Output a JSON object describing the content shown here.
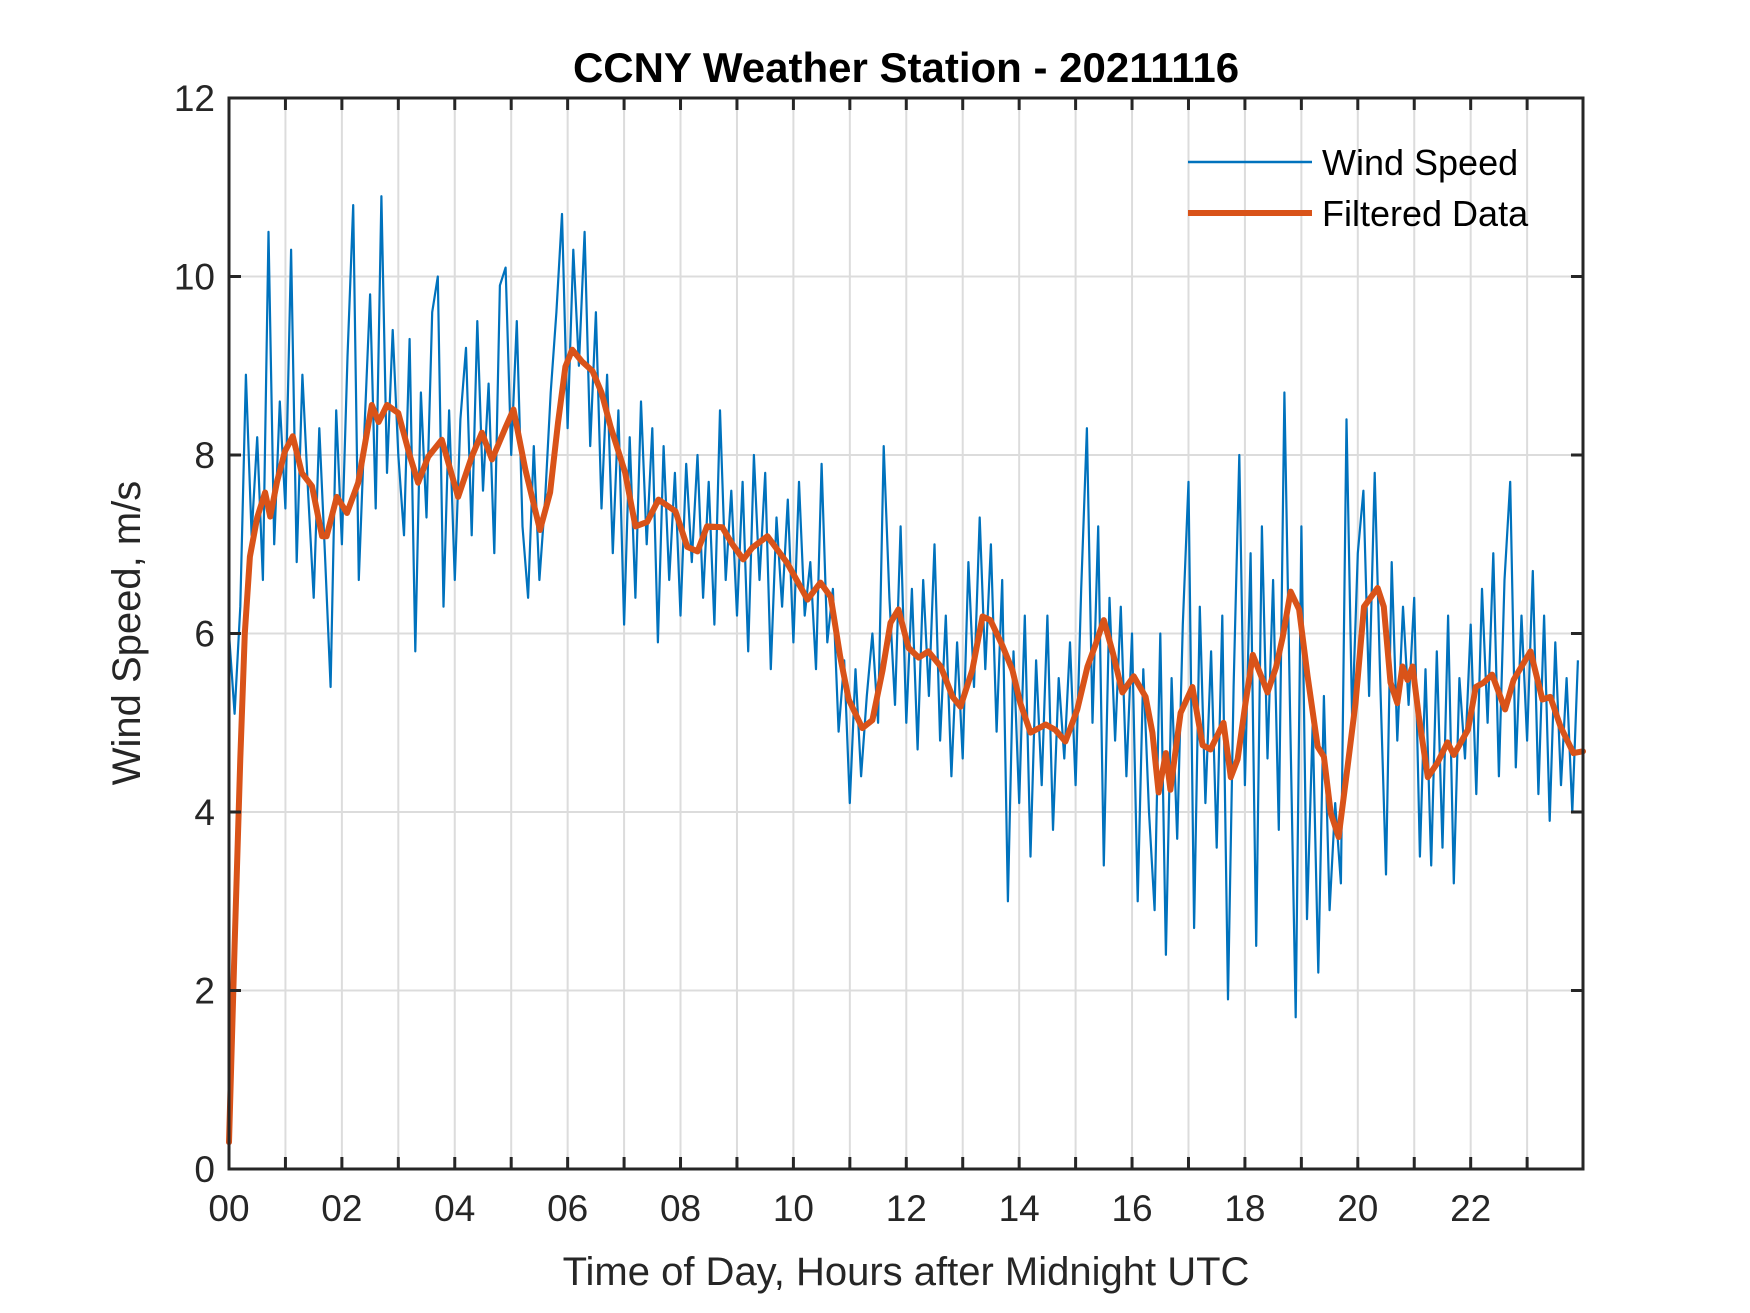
{
  "chart_data": {
    "type": "line",
    "title": "CCNY Weather Station - 20211116",
    "xlabel": "Time of Day, Hours after Midnight UTC",
    "ylabel": "Wind Speed, m/s",
    "xlim": [
      0,
      23.99
    ],
    "ylim": [
      0,
      12
    ],
    "grid": true,
    "legend_position": "top-right",
    "x_ticks": [
      0,
      1,
      2,
      3,
      4,
      5,
      6,
      7,
      8,
      9,
      10,
      11,
      12,
      13,
      14,
      15,
      16,
      17,
      18,
      19,
      20,
      21,
      22,
      23
    ],
    "x_tick_labels": [
      {
        "value": 0,
        "label": "00"
      },
      {
        "value": 2,
        "label": "02"
      },
      {
        "value": 4,
        "label": "04"
      },
      {
        "value": 6,
        "label": "06"
      },
      {
        "value": 8,
        "label": "08"
      },
      {
        "value": 10,
        "label": "10"
      },
      {
        "value": 12,
        "label": "12"
      },
      {
        "value": 14,
        "label": "14"
      },
      {
        "value": 16,
        "label": "16"
      },
      {
        "value": 18,
        "label": "18"
      },
      {
        "value": 20,
        "label": "20"
      },
      {
        "value": 22,
        "label": "22"
      }
    ],
    "y_ticks": [
      {
        "value": 0,
        "label": "0"
      },
      {
        "value": 2,
        "label": "2"
      },
      {
        "value": 4,
        "label": "4"
      },
      {
        "value": 6,
        "label": "6"
      },
      {
        "value": 8,
        "label": "8"
      },
      {
        "value": 10,
        "label": "10"
      },
      {
        "value": 12,
        "label": "12"
      }
    ],
    "series": [
      {
        "name": "Wind Speed",
        "color": "#0072bd",
        "x_start": 0,
        "x_step": 0.1,
        "values": [
          6.0,
          5.1,
          6.3,
          8.9,
          7.1,
          8.2,
          6.6,
          10.5,
          7.0,
          8.6,
          7.4,
          10.3,
          6.8,
          8.9,
          7.6,
          6.4,
          8.3,
          6.9,
          5.4,
          8.5,
          7.0,
          9.1,
          10.8,
          6.6,
          8.3,
          9.8,
          7.4,
          10.9,
          7.8,
          9.4,
          8.0,
          7.1,
          9.3,
          5.8,
          8.7,
          7.3,
          9.6,
          10.0,
          6.3,
          8.5,
          6.6,
          8.4,
          9.2,
          7.1,
          9.5,
          7.6,
          8.8,
          6.9,
          9.9,
          10.1,
          8.0,
          9.5,
          7.2,
          6.4,
          8.1,
          6.6,
          7.5,
          8.7,
          9.6,
          10.7,
          8.3,
          10.3,
          9.0,
          10.5,
          8.1,
          9.6,
          7.4,
          8.9,
          6.9,
          8.5,
          6.1,
          8.2,
          6.4,
          8.6,
          7.0,
          8.3,
          5.9,
          8.1,
          6.6,
          7.8,
          6.2,
          7.9,
          6.8,
          8.0,
          6.4,
          7.7,
          6.1,
          8.5,
          6.6,
          7.6,
          6.2,
          7.7,
          5.8,
          8.0,
          6.6,
          7.8,
          5.6,
          7.3,
          6.3,
          7.5,
          5.9,
          7.7,
          6.2,
          6.8,
          5.6,
          7.9,
          5.9,
          6.5,
          4.9,
          5.7,
          4.1,
          5.6,
          4.4,
          5.3,
          6.0,
          5.0,
          8.1,
          6.4,
          5.2,
          7.2,
          5.0,
          6.5,
          4.7,
          6.6,
          5.3,
          7.0,
          4.8,
          6.2,
          4.4,
          5.9,
          4.6,
          6.8,
          5.4,
          7.3,
          5.6,
          7.0,
          4.9,
          6.6,
          3.0,
          5.8,
          4.1,
          6.2,
          3.5,
          5.7,
          4.3,
          6.2,
          3.8,
          5.5,
          4.6,
          5.9,
          4.3,
          6.5,
          8.3,
          5.0,
          7.2,
          3.4,
          6.4,
          4.8,
          6.3,
          4.4,
          6.0,
          3.0,
          5.6,
          4.0,
          2.9,
          6.0,
          2.4,
          5.5,
          3.7,
          6.1,
          7.7,
          2.7,
          6.3,
          4.1,
          5.8,
          3.6,
          6.2,
          1.9,
          5.4,
          8.0,
          4.3,
          6.9,
          2.5,
          7.2,
          4.6,
          6.6,
          3.8,
          8.7,
          5.1,
          1.7,
          7.2,
          2.8,
          5.0,
          2.2,
          5.3,
          2.9,
          4.1,
          3.2,
          8.4,
          5.0,
          6.9,
          7.6,
          5.3,
          7.8,
          5.4,
          3.3,
          6.8,
          4.8,
          6.3,
          5.2,
          6.4,
          3.5,
          5.6,
          3.4,
          5.8,
          3.6,
          6.2,
          3.2,
          5.5,
          4.6,
          6.1,
          4.2,
          6.5,
          5.0,
          6.9,
          4.4,
          6.6,
          7.7,
          4.5,
          6.2,
          4.8,
          6.7,
          4.2,
          6.2,
          3.9,
          5.9,
          4.3,
          5.5,
          4.0,
          5.7
        ]
      },
      {
        "name": "Filtered Data",
        "color": "#d95319",
        "points": [
          [
            0,
            0.3
          ],
          [
            0.1,
            2.5
          ],
          [
            0.2,
            4.6
          ],
          [
            0.28,
            6.0
          ],
          [
            0.37,
            6.86
          ],
          [
            0.5,
            7.3
          ],
          [
            0.64,
            7.58
          ],
          [
            0.73,
            7.31
          ],
          [
            0.85,
            7.7
          ],
          [
            0.99,
            8.04
          ],
          [
            1.13,
            8.21
          ],
          [
            1.29,
            7.8
          ],
          [
            1.47,
            7.65
          ],
          [
            1.65,
            7.09
          ],
          [
            1.73,
            7.09
          ],
          [
            1.91,
            7.53
          ],
          [
            2.09,
            7.35
          ],
          [
            2.29,
            7.69
          ],
          [
            2.53,
            8.56
          ],
          [
            2.65,
            8.37
          ],
          [
            2.8,
            8.56
          ],
          [
            3.0,
            8.47
          ],
          [
            3.2,
            8.0
          ],
          [
            3.35,
            7.69
          ],
          [
            3.53,
            7.98
          ],
          [
            3.77,
            8.17
          ],
          [
            4.06,
            7.53
          ],
          [
            4.3,
            7.98
          ],
          [
            4.48,
            8.25
          ],
          [
            4.66,
            7.95
          ],
          [
            4.9,
            8.31
          ],
          [
            5.04,
            8.51
          ],
          [
            5.25,
            7.84
          ],
          [
            5.51,
            7.16
          ],
          [
            5.69,
            7.58
          ],
          [
            5.83,
            8.36
          ],
          [
            5.96,
            8.99
          ],
          [
            6.08,
            9.18
          ],
          [
            6.25,
            9.05
          ],
          [
            6.44,
            8.94
          ],
          [
            6.6,
            8.7
          ],
          [
            6.76,
            8.32
          ],
          [
            7.02,
            7.8
          ],
          [
            7.2,
            7.2
          ],
          [
            7.41,
            7.25
          ],
          [
            7.61,
            7.5
          ],
          [
            7.91,
            7.37
          ],
          [
            8.12,
            6.97
          ],
          [
            8.3,
            6.92
          ],
          [
            8.47,
            7.2
          ],
          [
            8.74,
            7.19
          ],
          [
            8.92,
            7.0
          ],
          [
            9.11,
            6.83
          ],
          [
            9.27,
            6.96
          ],
          [
            9.54,
            7.09
          ],
          [
            9.89,
            6.79
          ],
          [
            10.25,
            6.38
          ],
          [
            10.48,
            6.57
          ],
          [
            10.66,
            6.41
          ],
          [
            10.83,
            5.74
          ],
          [
            10.98,
            5.26
          ],
          [
            11.22,
            4.94
          ],
          [
            11.4,
            5.03
          ],
          [
            11.58,
            5.59
          ],
          [
            11.72,
            6.12
          ],
          [
            11.86,
            6.27
          ],
          [
            12.04,
            5.84
          ],
          [
            12.22,
            5.73
          ],
          [
            12.39,
            5.8
          ],
          [
            12.61,
            5.63
          ],
          [
            12.82,
            5.29
          ],
          [
            12.96,
            5.18
          ],
          [
            13.17,
            5.59
          ],
          [
            13.35,
            6.19
          ],
          [
            13.49,
            6.15
          ],
          [
            13.7,
            5.87
          ],
          [
            13.88,
            5.59
          ],
          [
            14.02,
            5.22
          ],
          [
            14.2,
            4.89
          ],
          [
            14.47,
            4.98
          ],
          [
            14.64,
            4.92
          ],
          [
            14.82,
            4.79
          ],
          [
            15.03,
            5.15
          ],
          [
            15.21,
            5.63
          ],
          [
            15.35,
            5.87
          ],
          [
            15.5,
            6.15
          ],
          [
            15.66,
            5.78
          ],
          [
            15.83,
            5.34
          ],
          [
            16.03,
            5.52
          ],
          [
            16.24,
            5.29
          ],
          [
            16.36,
            4.89
          ],
          [
            16.47,
            4.22
          ],
          [
            16.6,
            4.66
          ],
          [
            16.68,
            4.25
          ],
          [
            16.86,
            5.11
          ],
          [
            17.07,
            5.4
          ],
          [
            17.25,
            4.75
          ],
          [
            17.39,
            4.7
          ],
          [
            17.62,
            5.0
          ],
          [
            17.75,
            4.39
          ],
          [
            17.87,
            4.59
          ],
          [
            18.01,
            5.22
          ],
          [
            18.14,
            5.76
          ],
          [
            18.4,
            5.34
          ],
          [
            18.55,
            5.62
          ],
          [
            18.67,
            5.96
          ],
          [
            18.81,
            6.47
          ],
          [
            18.96,
            6.27
          ],
          [
            19.11,
            5.52
          ],
          [
            19.29,
            4.73
          ],
          [
            19.4,
            4.62
          ],
          [
            19.52,
            3.99
          ],
          [
            19.66,
            3.72
          ],
          [
            19.82,
            4.51
          ],
          [
            19.96,
            5.22
          ],
          [
            20.11,
            6.3
          ],
          [
            20.35,
            6.51
          ],
          [
            20.46,
            6.3
          ],
          [
            20.58,
            5.45
          ],
          [
            20.7,
            5.22
          ],
          [
            20.79,
            5.63
          ],
          [
            20.88,
            5.48
          ],
          [
            20.97,
            5.63
          ],
          [
            21.08,
            5.07
          ],
          [
            21.24,
            4.39
          ],
          [
            21.41,
            4.55
          ],
          [
            21.59,
            4.78
          ],
          [
            21.7,
            4.64
          ],
          [
            21.95,
            4.92
          ],
          [
            22.09,
            5.4
          ],
          [
            22.23,
            5.45
          ],
          [
            22.38,
            5.54
          ],
          [
            22.61,
            5.15
          ],
          [
            22.76,
            5.48
          ],
          [
            23.06,
            5.8
          ],
          [
            23.27,
            5.26
          ],
          [
            23.41,
            5.29
          ],
          [
            23.59,
            4.96
          ],
          [
            23.82,
            4.66
          ],
          [
            23.99,
            4.68
          ]
        ]
      }
    ]
  }
}
